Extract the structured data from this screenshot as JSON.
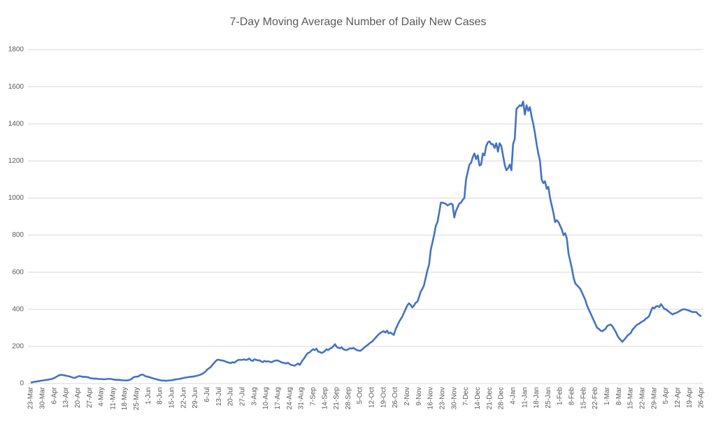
{
  "chart_data": {
    "type": "line",
    "title": "7-Day Moving Average Number of Daily New Cases",
    "categories": [
      "23-Mar",
      null,
      null,
      null,
      null,
      null,
      null,
      "30-Mar",
      null,
      null,
      null,
      null,
      null,
      null,
      "6-Apr",
      null,
      null,
      null,
      null,
      null,
      null,
      "13-Apr",
      null,
      null,
      null,
      null,
      null,
      null,
      "20-Apr",
      null,
      null,
      null,
      null,
      null,
      null,
      "27-Apr",
      null,
      null,
      null,
      null,
      null,
      null,
      "4-May",
      null,
      null,
      null,
      null,
      null,
      null,
      "11-May",
      null,
      null,
      null,
      null,
      null,
      null,
      "18-May",
      null,
      null,
      null,
      null,
      null,
      null,
      "25-May",
      null,
      null,
      null,
      null,
      null,
      null,
      "1-Jun",
      null,
      null,
      null,
      null,
      null,
      null,
      "8-Jun",
      null,
      null,
      null,
      null,
      null,
      null,
      "15-Jun",
      null,
      null,
      null,
      null,
      null,
      null,
      "22-Jun",
      null,
      null,
      null,
      null,
      null,
      null,
      "29-Jun",
      null,
      null,
      null,
      null,
      null,
      null,
      "6-Jul",
      null,
      null,
      null,
      null,
      null,
      null,
      "13-Jul",
      null,
      null,
      null,
      null,
      null,
      null,
      "20-Jul",
      null,
      null,
      null,
      null,
      null,
      null,
      "27-Jul",
      null,
      null,
      null,
      null,
      null,
      null,
      "3-Aug",
      null,
      null,
      null,
      null,
      null,
      null,
      "10-Aug",
      null,
      null,
      null,
      null,
      null,
      null,
      "17-Aug",
      null,
      null,
      null,
      null,
      null,
      null,
      "24-Aug",
      null,
      null,
      null,
      null,
      null,
      null,
      "31-Aug",
      null,
      null,
      null,
      null,
      null,
      null,
      "7-Sep",
      null,
      null,
      null,
      null,
      null,
      null,
      "14-Sep",
      null,
      null,
      null,
      null,
      null,
      null,
      "21-Sep",
      null,
      null,
      null,
      null,
      null,
      null,
      "28-Sep",
      null,
      null,
      null,
      null,
      null,
      null,
      "5-Oct",
      null,
      null,
      null,
      null,
      null,
      null,
      "12-Oct",
      null,
      null,
      null,
      null,
      null,
      null,
      "19-Oct",
      null,
      null,
      null,
      null,
      null,
      null,
      "26-Oct",
      null,
      null,
      null,
      null,
      null,
      null,
      "2-Nov",
      null,
      null,
      null,
      null,
      null,
      null,
      "9-Nov",
      null,
      null,
      null,
      null,
      null,
      null,
      "16-Nov",
      null,
      null,
      null,
      null,
      null,
      null,
      "23-Nov",
      null,
      null,
      null,
      null,
      null,
      null,
      "30-Nov",
      null,
      null,
      null,
      null,
      null,
      null,
      "7-Dec",
      null,
      null,
      null,
      null,
      null,
      null,
      "14-Dec",
      null,
      null,
      null,
      null,
      null,
      null,
      "21-Dec",
      null,
      null,
      null,
      null,
      null,
      null,
      "28-Dec",
      null,
      null,
      null,
      null,
      null,
      null,
      "4-Jan",
      null,
      null,
      null,
      null,
      null,
      null,
      "11-Jan",
      null,
      null,
      null,
      null,
      null,
      null,
      "18-Jan",
      null,
      null,
      null,
      null,
      null,
      null,
      "25-Jan",
      null,
      null,
      null,
      null,
      null,
      null,
      "1-Feb",
      null,
      null,
      null,
      null,
      null,
      null,
      "8-Feb",
      null,
      null,
      null,
      null,
      null,
      null,
      "15-Feb",
      null,
      null,
      null,
      null,
      null,
      null,
      "22-Feb",
      null,
      null,
      null,
      null,
      null,
      null,
      "1-Mar",
      null,
      null,
      null,
      null,
      null,
      null,
      "8-Mar",
      null,
      null,
      null,
      null,
      null,
      null,
      "15-Mar",
      null,
      null,
      null,
      null,
      null,
      null,
      "22-Mar",
      null,
      null,
      null,
      null,
      null,
      null,
      "29-Mar",
      null,
      null,
      null,
      null,
      null,
      null,
      "5-Apr",
      null,
      null,
      null,
      null,
      null,
      null,
      "12-Apr",
      null,
      null,
      null,
      null,
      null,
      null,
      "19-Apr",
      null,
      null,
      null,
      null,
      null,
      null,
      "26-Apr"
    ],
    "values": [
      5,
      7,
      9,
      10,
      12,
      13,
      15,
      16,
      18,
      19,
      20,
      22,
      24,
      26,
      30,
      35,
      40,
      45,
      47,
      46,
      44,
      42,
      40,
      38,
      35,
      32,
      30,
      33,
      38,
      40,
      38,
      36,
      36,
      35,
      34,
      30,
      28,
      27,
      26,
      26,
      25,
      24,
      24,
      23,
      23,
      24,
      25,
      25,
      24,
      22,
      21,
      20,
      20,
      19,
      18,
      17,
      17,
      16,
      18,
      20,
      25,
      33,
      36,
      37,
      38,
      45,
      48,
      47,
      40,
      38,
      36,
      33,
      30,
      27,
      25,
      22,
      20,
      18,
      16,
      16,
      15,
      15,
      16,
      17,
      18,
      20,
      22,
      23,
      24,
      26,
      28,
      30,
      32,
      33,
      35,
      36,
      37,
      38,
      40,
      42,
      45,
      48,
      52,
      58,
      65,
      75,
      82,
      88,
      100,
      110,
      120,
      128,
      128,
      125,
      124,
      122,
      118,
      115,
      112,
      110,
      115,
      112,
      118,
      125,
      128,
      127,
      128,
      130,
      127,
      129,
      135,
      125,
      122,
      130,
      128,
      125,
      125,
      120,
      115,
      122,
      118,
      120,
      118,
      115,
      118,
      122,
      124,
      124,
      120,
      115,
      112,
      110,
      108,
      112,
      105,
      100,
      98,
      96,
      102,
      108,
      100,
      115,
      128,
      140,
      155,
      165,
      168,
      178,
      185,
      180,
      188,
      172,
      170,
      165,
      168,
      175,
      185,
      180,
      188,
      192,
      200,
      212,
      198,
      192,
      190,
      195,
      185,
      182,
      180,
      185,
      190,
      188,
      192,
      186,
      180,
      178,
      176,
      182,
      190,
      198,
      205,
      212,
      220,
      225,
      235,
      245,
      255,
      265,
      272,
      278,
      282,
      275,
      285,
      270,
      275,
      268,
      262,
      290,
      310,
      330,
      345,
      360,
      380,
      400,
      420,
      432,
      425,
      410,
      420,
      435,
      440,
      465,
      495,
      510,
      530,
      570,
      610,
      640,
      720,
      760,
      800,
      850,
      870,
      920,
      975,
      975,
      972,
      968,
      960,
      965,
      970,
      965,
      895,
      930,
      950,
      970,
      975,
      990,
      1000,
      1100,
      1140,
      1180,
      1190,
      1220,
      1240,
      1210,
      1230,
      1175,
      1180,
      1240,
      1230,
      1280,
      1300,
      1305,
      1290,
      1290,
      1270,
      1295,
      1250,
      1295,
      1280,
      1230,
      1180,
      1150,
      1160,
      1180,
      1150,
      1290,
      1320,
      1480,
      1490,
      1500,
      1495,
      1520,
      1450,
      1500,
      1470,
      1490,
      1440,
      1400,
      1350,
      1290,
      1240,
      1200,
      1100,
      1080,
      1090,
      1050,
      1060,
      1000,
      960,
      920,
      870,
      880,
      870,
      850,
      830,
      800,
      810,
      780,
      700,
      660,
      620,
      570,
      540,
      530,
      520,
      510,
      490,
      470,
      450,
      420,
      400,
      380,
      360,
      340,
      320,
      300,
      295,
      285,
      282,
      288,
      295,
      310,
      315,
      318,
      310,
      295,
      280,
      260,
      245,
      235,
      225,
      235,
      245,
      258,
      265,
      272,
      290,
      300,
      310,
      318,
      322,
      330,
      335,
      340,
      350,
      355,
      365,
      390,
      410,
      405,
      415,
      418,
      412,
      428,
      415,
      402,
      400,
      392,
      385,
      378,
      372,
      378,
      380,
      385,
      390,
      395,
      400,
      400,
      398,
      395,
      392,
      388,
      385,
      386,
      385,
      375,
      368,
      362
    ],
    "color": "#4472c4",
    "ylim": [
      0,
      1800
    ],
    "yticks": [
      0,
      200,
      400,
      600,
      800,
      1000,
      1200,
      1400,
      1600,
      1800
    ],
    "grid": true
  }
}
